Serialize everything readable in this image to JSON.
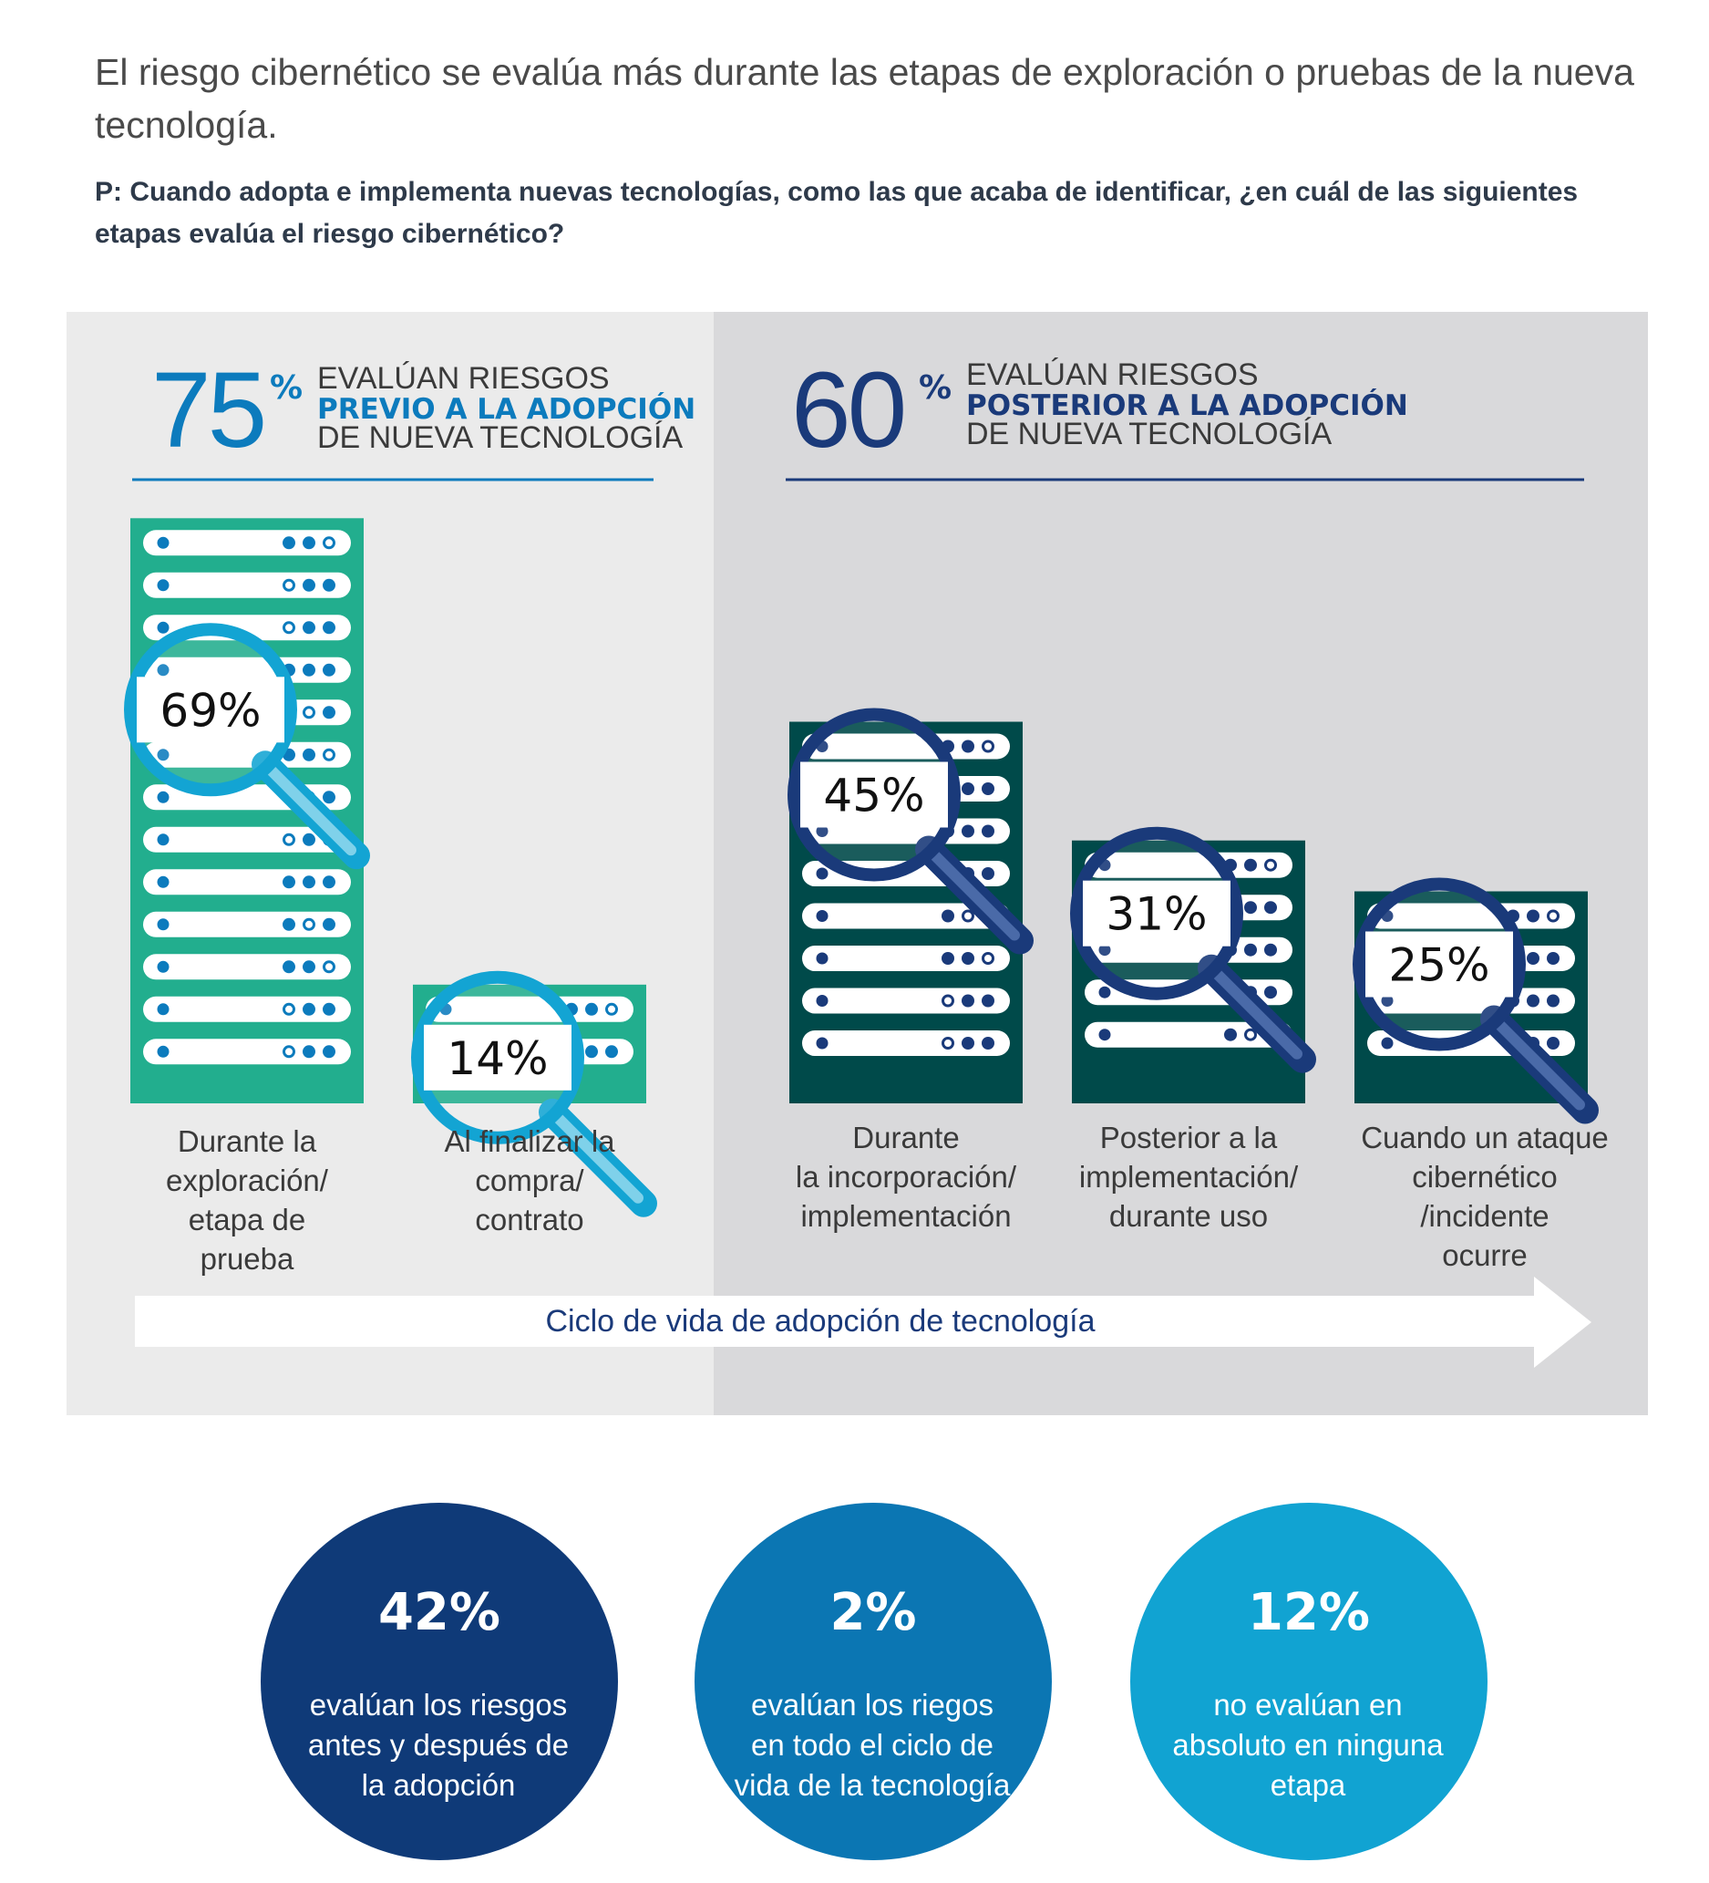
{
  "headline": "El riesgo cibernético se evalúa más durante las etapas de exploración o pruebas de la nueva tecnología.",
  "question": "P: Cuando adopta e implementa nuevas tecnologías, como las que acaba de identificar, ¿en cuál de las siguientes etapas  evalúa  el riesgo cibernético?",
  "colors": {
    "panel_left": "#ebebeb",
    "panel_right": "#d9d9db",
    "pre_server": "#22ae8e",
    "post_server": "#004a4a",
    "pre_accent": "#0c7bbd",
    "post_accent": "#1a3a7a",
    "lens_pre": "#13a4d3",
    "lens_post": "#1a3a7a",
    "circle_1": "#0f3a78",
    "circle_2": "#0b76b3",
    "circle_3": "#11a3d2"
  },
  "groups": {
    "pre": {
      "value": "75",
      "unit": "%",
      "line1": "EVALÚAN RIESGOS",
      "line2": "PREVIO A LA ADOPCIÓN",
      "line3": "DE NUEVA TECNOLOGÍA"
    },
    "post": {
      "value": "60",
      "unit": "%",
      "line1": "EVALÚAN RIESGOS",
      "line2": "POSTERIOR A LA ADOPCIÓN",
      "line3": "DE NUEVA TECNOLOGÍA"
    }
  },
  "chart_data": {
    "type": "bar",
    "unit": "%",
    "categories": [
      "Durante la exploración/ etapa de prueba",
      "Al finalizar la compra/ contrato",
      "Durante la incorporación/ implementación",
      "Posterior a la implementación/ durante uso",
      "Cuando un ataque cibernético /incidente ocurre"
    ],
    "values": [
      69,
      14,
      45,
      31,
      25
    ],
    "value_labels": [
      "69%",
      "14%",
      "45%",
      "31%",
      "25%"
    ],
    "category_lines": [
      [
        "Durante la",
        "exploración/",
        "etapa de",
        "prueba"
      ],
      [
        "Al finalizar la",
        "compra/",
        "contrato"
      ],
      [
        "Durante",
        "la incorporación/",
        "implementación"
      ],
      [
        "Posterior a la",
        "implementación/",
        "durante uso"
      ],
      [
        "Cuando un ataque",
        "cibernético",
        "/incidente",
        "ocurre"
      ]
    ],
    "groups": [
      "pre",
      "pre",
      "post",
      "post",
      "post"
    ],
    "axis_label": "Ciclo de vida de adopción de tecnología",
    "grid": false
  },
  "summary": [
    {
      "value": "42%",
      "text": "evalúan los riesgos antes y después de la adopción"
    },
    {
      "value": "2%",
      "text": "evalúan los riegos en todo el ciclo de vida de la tecnología"
    },
    {
      "value": "12%",
      "text": "no evalúan en absoluto en ninguna etapa"
    }
  ]
}
